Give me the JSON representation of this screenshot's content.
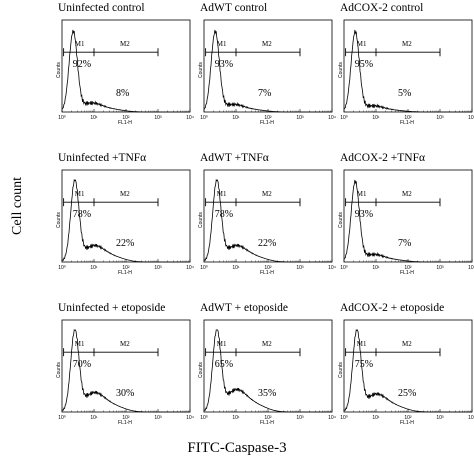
{
  "figure": {
    "ylabel": "Cell count",
    "xlabel": "FITC-Caspase-3",
    "panel_axis_y": "Counts",
    "panel_axis_x": "FL1-H",
    "tick_labels": [
      "10⁰",
      "10¹",
      "10²",
      "10³",
      "10⁴"
    ],
    "gate_labels": [
      "M1",
      "M2"
    ]
  },
  "chart_data": [
    {
      "type": "histogram",
      "title": "Uninfected control",
      "marker_M1_pct": "92%",
      "marker_M2_pct": "8%",
      "peak_log_fl1": 0.35,
      "tail": 0.25
    },
    {
      "type": "histogram",
      "title": "AdWT control",
      "marker_M1_pct": "93%",
      "marker_M2_pct": "7%",
      "peak_log_fl1": 0.35,
      "tail": 0.2
    },
    {
      "type": "histogram",
      "title": "AdCOX-2 control",
      "marker_M1_pct": "95%",
      "marker_M2_pct": "5%",
      "peak_log_fl1": 0.35,
      "tail": 0.15
    },
    {
      "type": "histogram",
      "title": "Uninfected +TNFα",
      "marker_M1_pct": "78%",
      "marker_M2_pct": "22%",
      "peak_log_fl1": 0.4,
      "tail": 0.5
    },
    {
      "type": "histogram",
      "title": "AdWT +TNFα",
      "marker_M1_pct": "78%",
      "marker_M2_pct": "22%",
      "peak_log_fl1": 0.4,
      "tail": 0.5
    },
    {
      "type": "histogram",
      "title": "AdCOX-2 +TNFα",
      "marker_M1_pct": "93%",
      "marker_M2_pct": "7%",
      "peak_log_fl1": 0.35,
      "tail": 0.2
    },
    {
      "type": "histogram",
      "title": "Uninfected + etoposide",
      "marker_M1_pct": "70%",
      "marker_M2_pct": "30%",
      "peak_log_fl1": 0.4,
      "tail": 0.6
    },
    {
      "type": "histogram",
      "title": "AdWT + etoposide",
      "marker_M1_pct": "65%",
      "marker_M2_pct": "35%",
      "peak_log_fl1": 0.4,
      "tail": 0.7
    },
    {
      "type": "histogram",
      "title": "AdCOX-2 + etoposide",
      "marker_M1_pct": "75%",
      "marker_M2_pct": "25%",
      "peak_log_fl1": 0.4,
      "tail": 0.55
    }
  ]
}
